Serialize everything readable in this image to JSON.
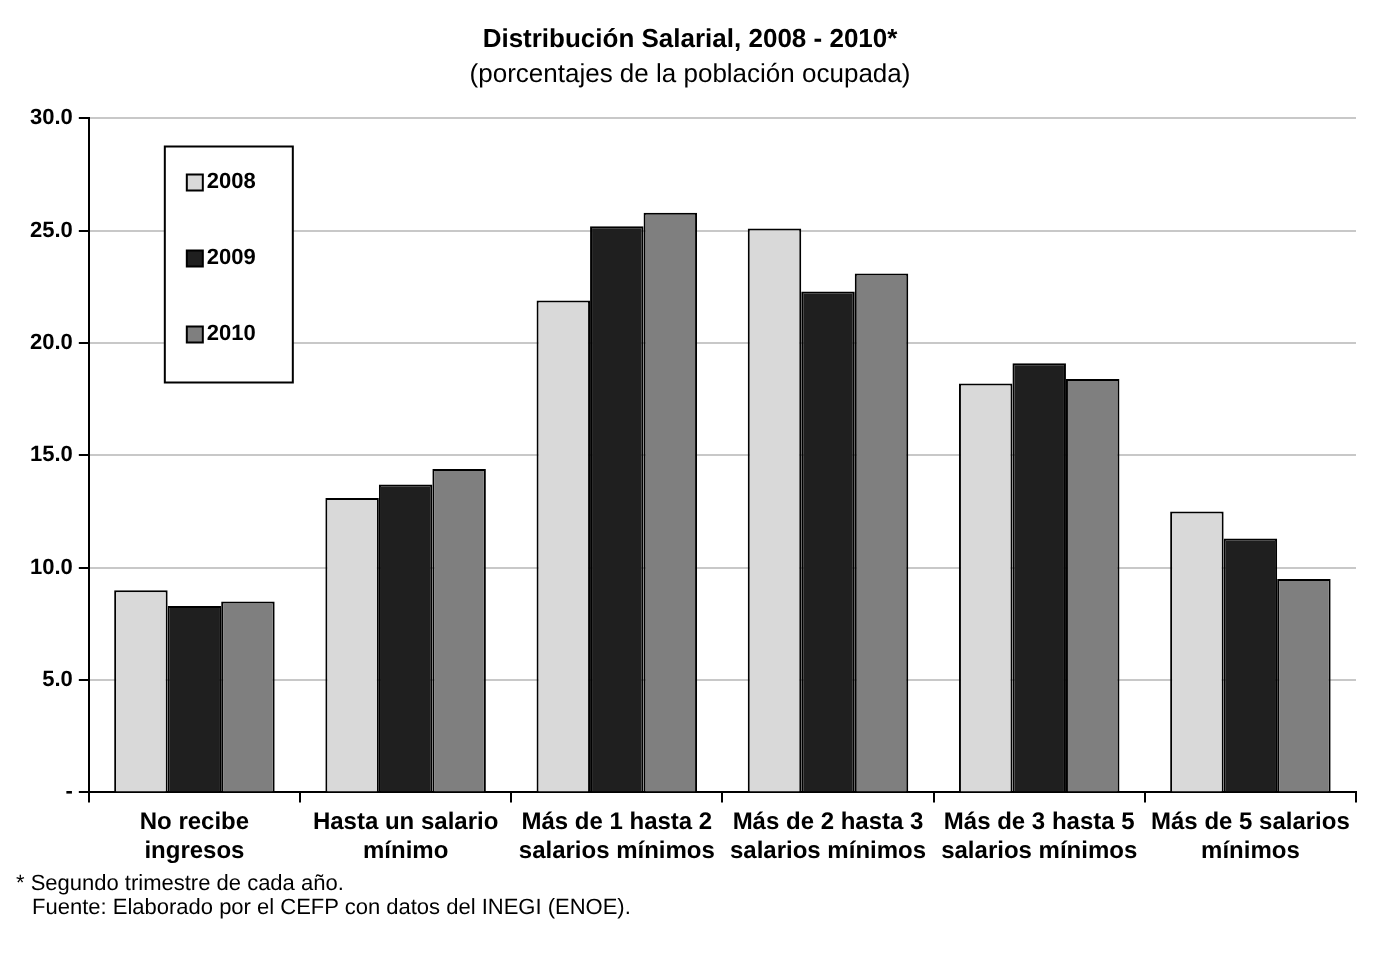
{
  "chart_data": {
    "type": "bar",
    "title": "Distribución Salarial, 2008 - 2010*",
    "subtitle": "(porcentajes de la población ocupada)",
    "categories": [
      "No recibe ingresos",
      "Hasta un salario mínimo",
      "Más de 1 hasta 2 salarios mínimos",
      "Más de 2 hasta 3 salarios mínimos",
      "Más de 3 hasta 5 salarios mínimos",
      "Más de 5 salarios mínimos"
    ],
    "series": [
      {
        "name": "2008",
        "color": "#d9d9d9",
        "values": [
          9.0,
          13.1,
          21.9,
          25.1,
          18.2,
          12.5
        ]
      },
      {
        "name": "2009",
        "color": "#1f1f1f",
        "values": [
          8.3,
          13.7,
          25.2,
          22.3,
          19.1,
          11.3
        ]
      },
      {
        "name": "2010",
        "color": "#7f7f7f",
        "values": [
          8.5,
          14.4,
          25.8,
          23.1,
          18.4,
          9.5
        ]
      }
    ],
    "ylim": [
      0,
      30
    ],
    "yticks": [
      {
        "value": 0,
        "label": "-"
      },
      {
        "value": 5,
        "label": "5.0"
      },
      {
        "value": 10,
        "label": "10.0"
      },
      {
        "value": 15,
        "label": "15.0"
      },
      {
        "value": 20,
        "label": "20.0"
      },
      {
        "value": 25,
        "label": "25.0"
      },
      {
        "value": 30,
        "label": "30.0"
      }
    ],
    "grid": "y",
    "legend": "top left",
    "annotations": [
      "* Segundo trimestre de cada año.",
      "Fuente: Elaborado por el  CEFP con datos del INEGI (ENOE)."
    ]
  }
}
